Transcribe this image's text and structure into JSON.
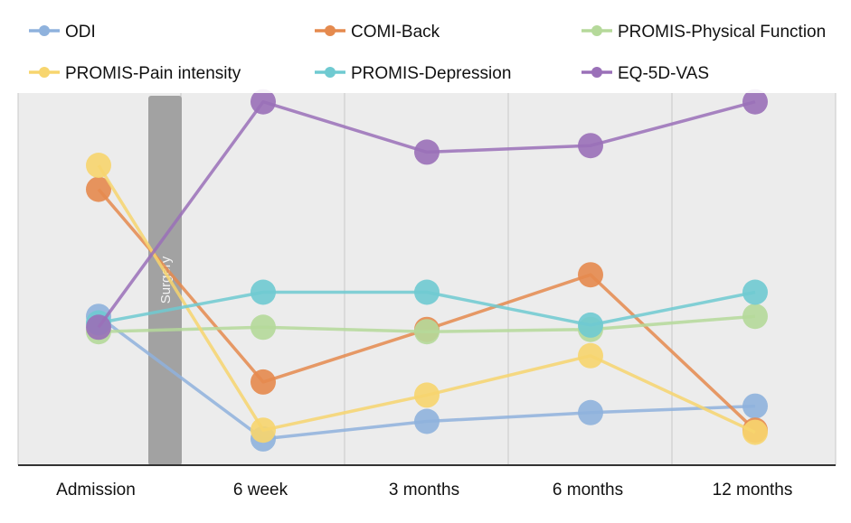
{
  "chart_data": {
    "type": "line",
    "categories": [
      "Admission",
      "6 week",
      "3 months",
      "6 months",
      "12 months"
    ],
    "series": [
      {
        "name": "ODI",
        "color": "#8fb2dd",
        "values": [
          34,
          6,
          10,
          12,
          13.5
        ]
      },
      {
        "name": "COMI-Back",
        "color": "#e58a4e",
        "values": [
          63,
          19,
          31,
          43.5,
          8
        ]
      },
      {
        "name": "PROMIS-Physical Function",
        "color": "#b5d99a",
        "values": [
          30.5,
          31.5,
          30.5,
          31,
          34
        ]
      },
      {
        "name": "PROMIS-Pain intensity",
        "color": "#f7d56e",
        "values": [
          68.5,
          8,
          16,
          25,
          7.5
        ]
      },
      {
        "name": "PROMIS-Depression",
        "color": "#6fcad1",
        "values": [
          32.5,
          39.5,
          39.5,
          32,
          39.5
        ]
      },
      {
        "name": "EQ-5D-VAS",
        "color": "#9a70b8",
        "values": [
          31.5,
          83,
          71.5,
          73,
          83
        ]
      }
    ],
    "annotation": "Surgery",
    "legend_position": "top",
    "ylim": [
      0,
      85
    ],
    "grid": true
  }
}
